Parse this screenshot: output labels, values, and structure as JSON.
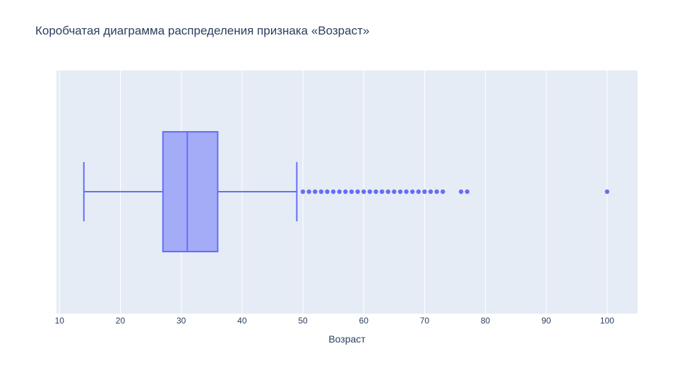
{
  "chart_data": {
    "type": "box",
    "title": "Коробчатая диаграмма распределения признака «Возраст»",
    "xlabel": "Возраст",
    "ylabel": "",
    "xlim": [
      9.5,
      105
    ],
    "xticks": [
      10,
      20,
      30,
      40,
      50,
      60,
      70,
      80,
      90,
      100
    ],
    "orientation": "horizontal",
    "grid": true,
    "box": {
      "lower_fence": 14,
      "q1": 27,
      "median": 31,
      "q3": 36,
      "upper_fence": 49
    },
    "outliers": [
      50,
      51,
      52,
      53,
      54,
      55,
      56,
      57,
      58,
      59,
      60,
      61,
      62,
      63,
      64,
      65,
      66,
      67,
      68,
      69,
      70,
      71,
      72,
      73,
      76,
      77,
      100
    ],
    "colors": {
      "plot_background": "#e5ecf6",
      "box_line": "#636efa",
      "box_fill": "#a4abf7",
      "grid": "#ffffff",
      "text": "#2a3f5f"
    }
  }
}
